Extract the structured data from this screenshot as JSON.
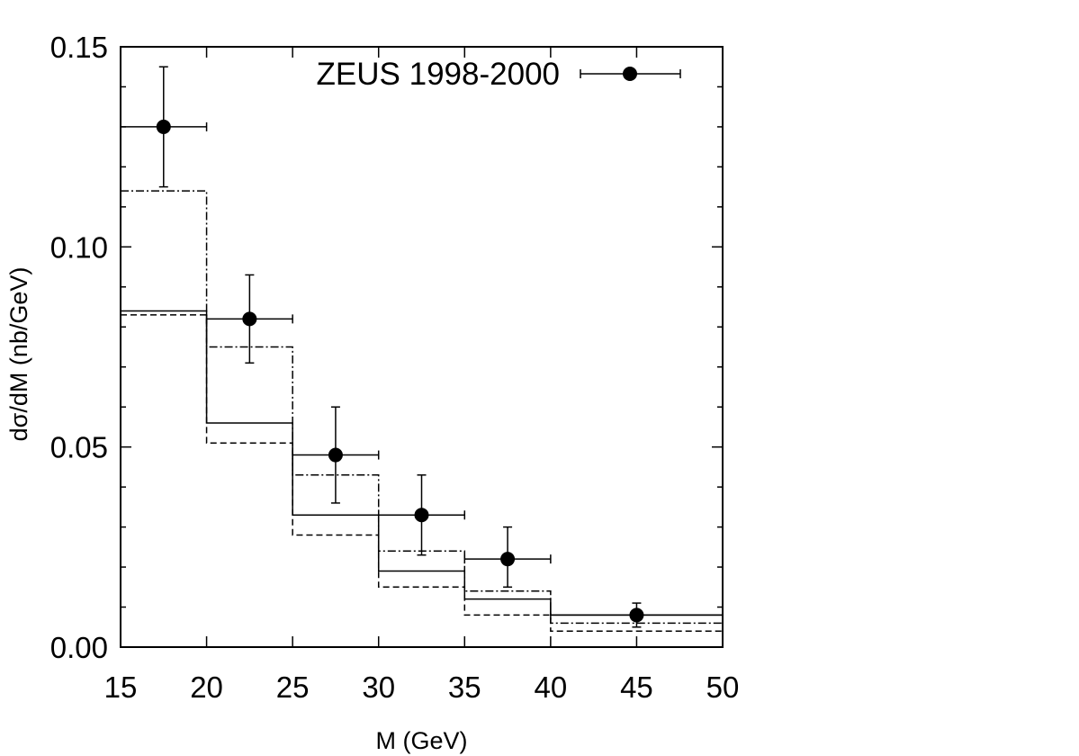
{
  "chart_data": {
    "type": "line",
    "xlabel": "M (GeV)",
    "ylabel": "dσ/dM (nb/GeV)",
    "xlim": [
      15,
      50
    ],
    "ylim": [
      0,
      0.15
    ],
    "x_ticks": [
      "15",
      "20",
      "25",
      "30",
      "35",
      "40",
      "45",
      "50"
    ],
    "y_ticks": [
      "0.00",
      "0.05",
      "0.10",
      "0.15"
    ],
    "grid": false,
    "legend_position": "top-right",
    "points": {
      "name": "ZEUS 1998-2000",
      "x": [
        17.5,
        22.5,
        27.5,
        32.5,
        37.5,
        45
      ],
      "y": [
        0.13,
        0.082,
        0.048,
        0.033,
        0.022,
        0.008
      ],
      "x_err": [
        2.5,
        2.5,
        2.5,
        2.5,
        2.5,
        5
      ],
      "y_err_up": [
        0.015,
        0.011,
        0.012,
        0.01,
        0.008,
        0.003
      ],
      "y_err_down": [
        0.015,
        0.011,
        0.012,
        0.01,
        0.007,
        0.003
      ]
    },
    "bin_edges": [
      15,
      20,
      25,
      30,
      35,
      40,
      50
    ],
    "histograms": [
      {
        "style": "solid",
        "values": [
          0.084,
          0.056,
          0.033,
          0.019,
          0.012,
          0.008
        ]
      },
      {
        "style": "dashed",
        "values": [
          0.083,
          0.051,
          0.028,
          0.015,
          0.008,
          0.004
        ]
      },
      {
        "style": "dashdot",
        "values": [
          0.114,
          0.075,
          0.043,
          0.024,
          0.014,
          0.006
        ]
      }
    ]
  }
}
